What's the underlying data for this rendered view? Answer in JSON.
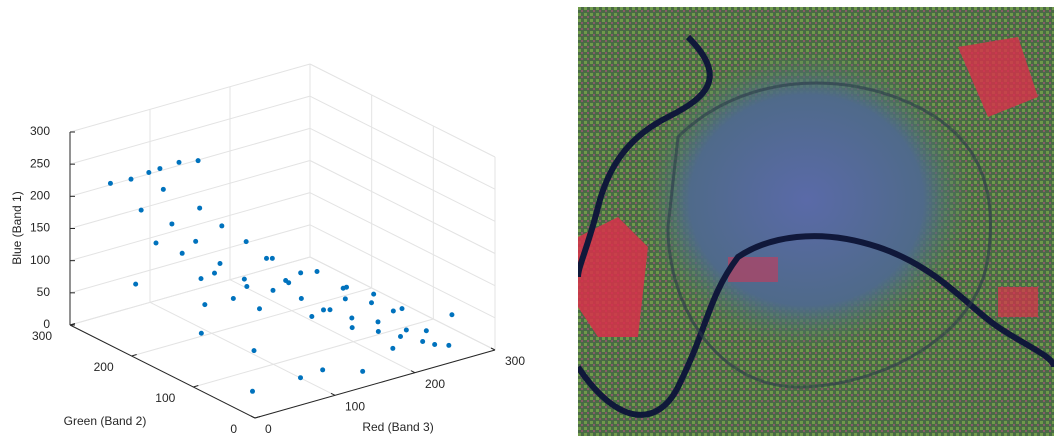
{
  "chart_data": {
    "type": "scatter3d",
    "xlabel": "Red (Band 3)",
    "ylabel": "Green (Band 2)",
    "zlabel": "Blue (Band 1)",
    "xlim": [
      0,
      300
    ],
    "ylim": [
      0,
      300
    ],
    "zlim": [
      0,
      300
    ],
    "xticks": [
      0,
      100,
      200,
      300
    ],
    "yticks": [
      0,
      100,
      200,
      300
    ],
    "zticks": [
      0,
      50,
      100,
      150,
      200,
      250,
      300
    ],
    "grid": true,
    "color": "#0072bd",
    "x": [
      12,
      35,
      58,
      80,
      95,
      110,
      130,
      150,
      170,
      190,
      210,
      230,
      245,
      25,
      50,
      75,
      100,
      125,
      140,
      160,
      185,
      205,
      225,
      250,
      15,
      40,
      65,
      90,
      115,
      135,
      155,
      175,
      200,
      220,
      240,
      30,
      55,
      85,
      105,
      120,
      145,
      165,
      195,
      215,
      60,
      70,
      90,
      110,
      45,
      20,
      10,
      5,
      100,
      150,
      180,
      230,
      250,
      250,
      80,
      130
    ],
    "y": [
      250,
      230,
      210,
      200,
      180,
      160,
      150,
      140,
      120,
      100,
      80,
      60,
      40,
      120,
      100,
      90,
      80,
      70,
      60,
      50,
      40,
      30,
      20,
      10,
      180,
      170,
      150,
      130,
      120,
      100,
      90,
      70,
      60,
      40,
      20,
      240,
      220,
      200,
      190,
      170,
      160,
      140,
      110,
      90,
      250,
      245,
      240,
      235,
      60,
      30,
      100,
      200,
      20,
      20,
      10,
      150,
      5,
      100,
      30,
      250
    ],
    "z": [
      240,
      200,
      180,
      150,
      120,
      100,
      130,
      90,
      110,
      70,
      80,
      60,
      30,
      150,
      120,
      100,
      140,
      80,
      90,
      60,
      50,
      40,
      30,
      20,
      180,
      160,
      130,
      110,
      100,
      90,
      70,
      60,
      50,
      40,
      20,
      245,
      230,
      200,
      170,
      150,
      120,
      100,
      80,
      60,
      240,
      245,
      250,
      248,
      60,
      20,
      80,
      110,
      30,
      10,
      40,
      50,
      70,
      30,
      20,
      10
    ]
  }
}
